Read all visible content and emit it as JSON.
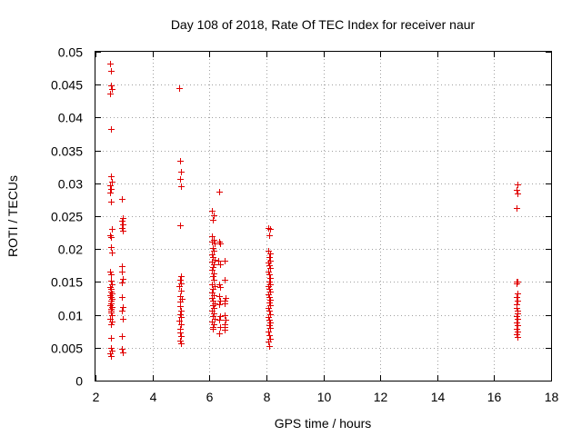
{
  "chart_data": {
    "type": "scatter",
    "title": "Day 108 of 2018, Rate Of TEC Index for receiver naur",
    "xlabel": "GPS time / hours",
    "ylabel": "ROTI / TECUs",
    "xlim": [
      2,
      18
    ],
    "ylim": [
      0,
      0.05
    ],
    "grid": true,
    "marker": "+",
    "color": "#e00000",
    "x_ticks": [
      "2",
      "4",
      "6",
      "8",
      "10",
      "12",
      "14",
      "16",
      "18"
    ],
    "y_ticks": [
      "0",
      "0.005",
      "0.01",
      "0.015",
      "0.02",
      "0.025",
      "0.03",
      "0.035",
      "0.04",
      "0.045",
      "0.05"
    ],
    "series": [
      {
        "name": "ROTI",
        "points": [
          [
            2.52,
            0.0482
          ],
          [
            2.55,
            0.0471
          ],
          [
            2.53,
            0.0449
          ],
          [
            2.56,
            0.0443
          ],
          [
            2.52,
            0.0437
          ],
          [
            2.55,
            0.0383
          ],
          [
            2.54,
            0.0311
          ],
          [
            2.57,
            0.0303
          ],
          [
            2.52,
            0.0297
          ],
          [
            2.55,
            0.0291
          ],
          [
            2.51,
            0.0286
          ],
          [
            2.53,
            0.0272
          ],
          [
            2.56,
            0.0231
          ],
          [
            2.52,
            0.0221
          ],
          [
            2.55,
            0.0218
          ],
          [
            2.53,
            0.0203
          ],
          [
            2.56,
            0.0195
          ],
          [
            2.52,
            0.0166
          ],
          [
            2.55,
            0.0161
          ],
          [
            2.54,
            0.0152
          ],
          [
            2.57,
            0.0147
          ],
          [
            2.51,
            0.0142
          ],
          [
            2.55,
            0.0139
          ],
          [
            2.53,
            0.0136
          ],
          [
            2.56,
            0.0133
          ],
          [
            2.52,
            0.013
          ],
          [
            2.54,
            0.0127
          ],
          [
            2.57,
            0.0124
          ],
          [
            2.53,
            0.0121
          ],
          [
            2.55,
            0.0118
          ],
          [
            2.52,
            0.0115
          ],
          [
            2.56,
            0.0112
          ],
          [
            2.54,
            0.0109
          ],
          [
            2.53,
            0.0106
          ],
          [
            2.55,
            0.0103
          ],
          [
            2.57,
            0.0099
          ],
          [
            2.52,
            0.0094
          ],
          [
            2.56,
            0.009
          ],
          [
            2.54,
            0.0086
          ],
          [
            2.55,
            0.0065
          ],
          [
            2.53,
            0.005
          ],
          [
            2.56,
            0.0046
          ],
          [
            2.52,
            0.0041
          ],
          [
            2.54,
            0.0037
          ],
          [
            2.93,
            0.0276
          ],
          [
            2.96,
            0.0247
          ],
          [
            2.92,
            0.0243
          ],
          [
            2.95,
            0.0237
          ],
          [
            2.93,
            0.0232
          ],
          [
            2.96,
            0.0228
          ],
          [
            2.94,
            0.0174
          ],
          [
            2.92,
            0.0166
          ],
          [
            2.95,
            0.0155
          ],
          [
            2.93,
            0.0149
          ],
          [
            2.94,
            0.0127
          ],
          [
            2.96,
            0.0112
          ],
          [
            2.93,
            0.0106
          ],
          [
            2.95,
            0.0094
          ],
          [
            2.94,
            0.0068
          ],
          [
            2.93,
            0.0049
          ],
          [
            2.95,
            0.0043
          ],
          [
            4.93,
            0.0445
          ],
          [
            4.98,
            0.0334
          ],
          [
            5.0,
            0.0318
          ],
          [
            4.97,
            0.0307
          ],
          [
            4.99,
            0.0296
          ],
          [
            4.96,
            0.0236
          ],
          [
            5.01,
            0.0159
          ],
          [
            4.97,
            0.0154
          ],
          [
            5.0,
            0.0148
          ],
          [
            4.95,
            0.0143
          ],
          [
            4.99,
            0.0137
          ],
          [
            4.96,
            0.0129
          ],
          [
            5.02,
            0.0124
          ],
          [
            4.98,
            0.012
          ],
          [
            4.96,
            0.0113
          ],
          [
            5.01,
            0.0107
          ],
          [
            4.97,
            0.0101
          ],
          [
            4.99,
            0.0096
          ],
          [
            4.95,
            0.0091
          ],
          [
            5.0,
            0.0086
          ],
          [
            4.96,
            0.0079
          ],
          [
            4.98,
            0.0073
          ],
          [
            5.0,
            0.0067
          ],
          [
            4.97,
            0.0061
          ],
          [
            4.99,
            0.0056
          ],
          [
            6.1,
            0.0258
          ],
          [
            6.15,
            0.0252
          ],
          [
            6.12,
            0.0244
          ],
          [
            6.1,
            0.0219
          ],
          [
            6.14,
            0.0214
          ],
          [
            6.08,
            0.0211
          ],
          [
            6.18,
            0.0208
          ],
          [
            6.11,
            0.0201
          ],
          [
            6.16,
            0.0197
          ],
          [
            6.09,
            0.0192
          ],
          [
            6.13,
            0.0188
          ],
          [
            6.17,
            0.0184
          ],
          [
            6.1,
            0.0181
          ],
          [
            6.15,
            0.0177
          ],
          [
            6.12,
            0.0172
          ],
          [
            6.08,
            0.0168
          ],
          [
            6.16,
            0.0163
          ],
          [
            6.11,
            0.0159
          ],
          [
            6.14,
            0.0153
          ],
          [
            6.09,
            0.0147
          ],
          [
            6.17,
            0.0143
          ],
          [
            6.12,
            0.0139
          ],
          [
            6.1,
            0.0134
          ],
          [
            6.15,
            0.013
          ],
          [
            6.08,
            0.0126
          ],
          [
            6.13,
            0.0122
          ],
          [
            6.18,
            0.0118
          ],
          [
            6.11,
            0.0114
          ],
          [
            6.16,
            0.011
          ],
          [
            6.09,
            0.0106
          ],
          [
            6.14,
            0.0102
          ],
          [
            6.12,
            0.0098
          ],
          [
            6.17,
            0.0094
          ],
          [
            6.1,
            0.009
          ],
          [
            6.15,
            0.0086
          ],
          [
            6.13,
            0.0082
          ],
          [
            6.11,
            0.0079
          ],
          [
            6.35,
            0.0287
          ],
          [
            6.33,
            0.0212
          ],
          [
            6.38,
            0.0208
          ],
          [
            6.32,
            0.0182
          ],
          [
            6.36,
            0.0177
          ],
          [
            6.34,
            0.0147
          ],
          [
            6.37,
            0.0142
          ],
          [
            6.33,
            0.0128
          ],
          [
            6.36,
            0.0122
          ],
          [
            6.34,
            0.0116
          ],
          [
            6.38,
            0.0098
          ],
          [
            6.33,
            0.0092
          ],
          [
            6.36,
            0.0081
          ],
          [
            6.35,
            0.0072
          ],
          [
            6.55,
            0.0182
          ],
          [
            6.52,
            0.0154
          ],
          [
            6.56,
            0.0126
          ],
          [
            6.53,
            0.0122
          ],
          [
            6.55,
            0.0117
          ],
          [
            6.52,
            0.0099
          ],
          [
            6.56,
            0.0093
          ],
          [
            6.54,
            0.0086
          ],
          [
            6.53,
            0.0081
          ],
          [
            6.55,
            0.0077
          ],
          [
            8.07,
            0.0232
          ],
          [
            8.13,
            0.0231
          ],
          [
            8.1,
            0.0221
          ],
          [
            8.08,
            0.0197
          ],
          [
            8.12,
            0.0193
          ],
          [
            8.09,
            0.0188
          ],
          [
            8.14,
            0.0183
          ],
          [
            8.07,
            0.0179
          ],
          [
            8.11,
            0.0176
          ],
          [
            8.13,
            0.0171
          ],
          [
            8.08,
            0.0166
          ],
          [
            8.1,
            0.0161
          ],
          [
            8.12,
            0.0156
          ],
          [
            8.09,
            0.0151
          ],
          [
            8.14,
            0.0147
          ],
          [
            8.07,
            0.0143
          ],
          [
            8.11,
            0.0139
          ],
          [
            8.13,
            0.0135
          ],
          [
            8.08,
            0.0131
          ],
          [
            8.1,
            0.0127
          ],
          [
            8.12,
            0.0123
          ],
          [
            8.09,
            0.0119
          ],
          [
            8.14,
            0.0114
          ],
          [
            8.07,
            0.011
          ],
          [
            8.11,
            0.0106
          ],
          [
            8.13,
            0.0101
          ],
          [
            8.08,
            0.0097
          ],
          [
            8.1,
            0.0093
          ],
          [
            8.12,
            0.0088
          ],
          [
            8.09,
            0.0084
          ],
          [
            8.14,
            0.008
          ],
          [
            8.07,
            0.0075
          ],
          [
            8.11,
            0.0069
          ],
          [
            8.13,
            0.0064
          ],
          [
            8.08,
            0.0059
          ],
          [
            8.1,
            0.0053
          ],
          [
            16.82,
            0.0298
          ],
          [
            16.79,
            0.029
          ],
          [
            16.81,
            0.0284
          ],
          [
            16.8,
            0.0263
          ],
          [
            16.78,
            0.0151
          ],
          [
            16.83,
            0.015
          ],
          [
            16.8,
            0.0148
          ],
          [
            16.81,
            0.0133
          ],
          [
            16.79,
            0.0127
          ],
          [
            16.82,
            0.0121
          ],
          [
            16.8,
            0.0116
          ],
          [
            16.78,
            0.0111
          ],
          [
            16.83,
            0.0106
          ],
          [
            16.81,
            0.0102
          ],
          [
            16.79,
            0.0098
          ],
          [
            16.82,
            0.0094
          ],
          [
            16.8,
            0.0089
          ],
          [
            16.81,
            0.0084
          ],
          [
            16.79,
            0.0079
          ],
          [
            16.82,
            0.0075
          ],
          [
            16.8,
            0.0071
          ],
          [
            16.81,
            0.0066
          ]
        ]
      }
    ]
  }
}
